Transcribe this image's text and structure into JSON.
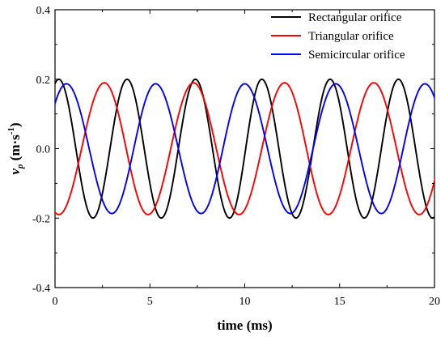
{
  "chart_data": {
    "type": "line",
    "title": "",
    "xlabel": "time (ms)",
    "ylabel": {
      "main": "v",
      "sub": "p",
      "unit_open": " (m·s",
      "unit_sup": "-1",
      "unit_close": ")"
    },
    "xlim": [
      0,
      20
    ],
    "ylim": [
      -0.4,
      0.4
    ],
    "xticks": [
      0,
      5,
      10,
      15,
      20
    ],
    "xtick_labels": [
      "0",
      "5",
      "10",
      "15",
      "20"
    ],
    "yticks": [
      -0.4,
      -0.2,
      0.0,
      0.2,
      0.4
    ],
    "ytick_labels": [
      "-0.4",
      "-0.2",
      "0.0",
      "0.2",
      "0.4"
    ],
    "grid": false,
    "legend_position": "top-right",
    "series": [
      {
        "name": "Rectangular orifice",
        "color": "#000000",
        "amplitude": 0.2,
        "peaks_ms": [
          0.2,
          3.8,
          7.4,
          10.9,
          14.5,
          18.1
        ],
        "troughs_ms": [
          2.0,
          5.6,
          9.2,
          12.7,
          16.3,
          19.9
        ]
      },
      {
        "name": "Triangular orifice",
        "color": "#ff0000",
        "amplitude": 0.19,
        "peaks_ms": [
          2.6,
          7.3,
          12.1,
          16.8
        ],
        "troughs_ms": [
          0.2,
          4.9,
          9.7,
          14.4,
          19.2
        ]
      },
      {
        "name": "Semicircular orifice",
        "color": "#0000ff",
        "amplitude": 0.187,
        "peaks_ms": [
          0.6,
          5.3,
          10.0,
          14.8,
          19.5
        ],
        "troughs_ms": [
          3.0,
          7.7,
          12.4,
          17.2
        ]
      }
    ]
  }
}
